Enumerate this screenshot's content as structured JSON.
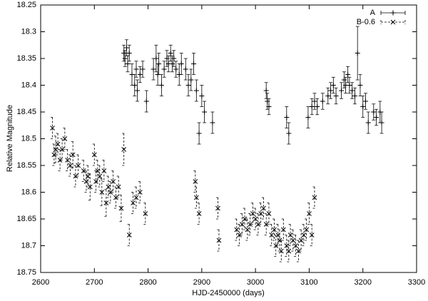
{
  "chart_data": {
    "type": "errorbar-scatter",
    "xlabel": "HJD-2450000 (days)",
    "ylabel": "Relative Magnitude",
    "xlim": [
      2600,
      3300
    ],
    "xticks": [
      2600,
      2700,
      2800,
      2900,
      3000,
      3100,
      3200,
      3300
    ],
    "ylim": [
      18.25,
      18.75
    ],
    "yticks": [
      18.25,
      18.3,
      18.35,
      18.4,
      18.45,
      18.5,
      18.55,
      18.6,
      18.65,
      18.7,
      18.75
    ],
    "y_inverted": true,
    "legend": "top right",
    "series": [
      {
        "name": "A",
        "color": "#000000",
        "marker": "plus",
        "dashed": false,
        "x": [
          2755,
          2757,
          2760,
          2762,
          2765,
          2770,
          2775,
          2778,
          2780,
          2785,
          2790,
          2797,
          2810,
          2815,
          2818,
          2820,
          2825,
          2830,
          2835,
          2838,
          2842,
          2845,
          2848,
          2852,
          2858,
          2862,
          2870,
          2875,
          2880,
          2885,
          2890,
          2895,
          2900,
          2905,
          2920,
          3020,
          3022,
          3025,
          3058,
          3062,
          3098,
          3105,
          3110,
          3115,
          3125,
          3135,
          3140,
          3145,
          3150,
          3160,
          3165,
          3168,
          3172,
          3175,
          3180,
          3185,
          3190,
          3195,
          3200,
          3205,
          3210,
          3220,
          3225,
          3232,
          3235
        ],
        "values": [
          18.34,
          18.35,
          18.33,
          18.36,
          18.34,
          18.38,
          18.4,
          18.37,
          18.41,
          18.38,
          18.37,
          18.43,
          18.37,
          18.35,
          18.38,
          18.36,
          18.4,
          18.37,
          18.35,
          18.36,
          18.34,
          18.36,
          18.35,
          18.37,
          18.38,
          18.36,
          18.37,
          18.4,
          18.39,
          18.36,
          18.41,
          18.49,
          18.42,
          18.45,
          18.47,
          18.41,
          18.43,
          18.44,
          18.46,
          18.49,
          18.46,
          18.44,
          18.43,
          18.44,
          18.43,
          18.42,
          18.41,
          18.4,
          18.42,
          18.41,
          18.39,
          18.4,
          18.38,
          18.4,
          18.41,
          18.42,
          18.34,
          18.4,
          18.44,
          18.43,
          18.47,
          18.45,
          18.46,
          18.45,
          18.47
        ],
        "errors": [
          0.015,
          0.015,
          0.015,
          0.015,
          0.015,
          0.02,
          0.02,
          0.015,
          0.02,
          0.015,
          0.015,
          0.02,
          0.02,
          0.025,
          0.02,
          0.02,
          0.02,
          0.015,
          0.015,
          0.015,
          0.015,
          0.015,
          0.015,
          0.015,
          0.02,
          0.02,
          0.02,
          0.02,
          0.02,
          0.02,
          0.02,
          0.02,
          0.02,
          0.02,
          0.02,
          0.015,
          0.015,
          0.015,
          0.02,
          0.02,
          0.02,
          0.015,
          0.015,
          0.015,
          0.015,
          0.015,
          0.015,
          0.015,
          0.015,
          0.015,
          0.015,
          0.015,
          0.015,
          0.015,
          0.015,
          0.015,
          0.05,
          0.02,
          0.02,
          0.015,
          0.02,
          0.015,
          0.015,
          0.02,
          0.02
        ]
      },
      {
        "name": "B-0.6",
        "color": "#000000",
        "marker": "cross",
        "dashed": true,
        "x": [
          2622,
          2625,
          2628,
          2632,
          2636,
          2640,
          2645,
          2650,
          2655,
          2660,
          2665,
          2670,
          2680,
          2685,
          2688,
          2692,
          2700,
          2703,
          2706,
          2710,
          2714,
          2718,
          2722,
          2726,
          2730,
          2735,
          2740,
          2745,
          2750,
          2755,
          2765,
          2772,
          2778,
          2785,
          2795,
          2888,
          2890,
          2895,
          2930,
          2932,
          2965,
          2970,
          2975,
          2980,
          2985,
          2990,
          2995,
          3000,
          3005,
          3010,
          3015,
          3020,
          3025,
          3030,
          3035,
          3038,
          3042,
          3045,
          3048,
          3052,
          3058,
          3062,
          3065,
          3070,
          3075,
          3080,
          3085,
          3090,
          3095,
          3100,
          3105,
          3110
        ],
        "values": [
          18.48,
          18.53,
          18.52,
          18.51,
          18.54,
          18.52,
          18.5,
          18.54,
          18.55,
          18.53,
          18.57,
          18.55,
          18.56,
          18.58,
          18.57,
          18.59,
          18.53,
          18.58,
          18.56,
          18.57,
          18.6,
          18.56,
          18.62,
          18.59,
          18.6,
          18.58,
          18.61,
          18.59,
          18.63,
          18.52,
          18.68,
          18.62,
          18.61,
          18.6,
          18.64,
          18.58,
          18.61,
          18.64,
          18.63,
          18.69,
          18.67,
          18.68,
          18.66,
          18.65,
          18.67,
          18.66,
          18.64,
          18.65,
          18.66,
          18.64,
          18.63,
          18.66,
          18.64,
          18.68,
          18.67,
          18.7,
          18.68,
          18.69,
          18.71,
          18.67,
          18.7,
          18.71,
          18.68,
          18.69,
          18.7,
          18.71,
          18.69,
          18.68,
          18.67,
          18.64,
          18.68,
          18.61
        ],
        "errors": [
          0.02,
          0.02,
          0.025,
          0.02,
          0.02,
          0.02,
          0.02,
          0.02,
          0.02,
          0.025,
          0.02,
          0.02,
          0.02,
          0.02,
          0.02,
          0.025,
          0.02,
          0.02,
          0.02,
          0.02,
          0.025,
          0.02,
          0.025,
          0.02,
          0.02,
          0.02,
          0.02,
          0.02,
          0.025,
          0.03,
          0.02,
          0.02,
          0.02,
          0.02,
          0.02,
          0.02,
          0.02,
          0.02,
          0.02,
          0.02,
          0.02,
          0.02,
          0.02,
          0.02,
          0.02,
          0.02,
          0.02,
          0.02,
          0.02,
          0.02,
          0.02,
          0.02,
          0.02,
          0.02,
          0.02,
          0.02,
          0.02,
          0.02,
          0.02,
          0.02,
          0.02,
          0.02,
          0.02,
          0.02,
          0.02,
          0.02,
          0.02,
          0.02,
          0.02,
          0.02,
          0.02,
          0.02
        ]
      }
    ]
  }
}
